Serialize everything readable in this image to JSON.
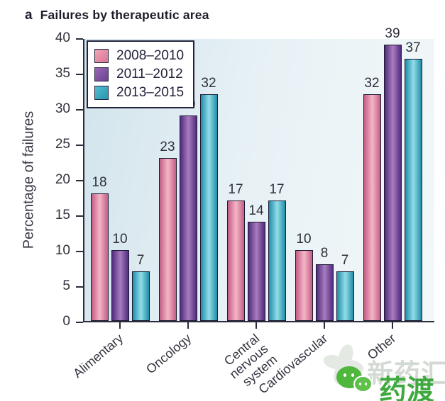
{
  "title": {
    "panel": "a",
    "text": "Failures by therapeutic area"
  },
  "chart_data": {
    "type": "bar",
    "title": "Failures by therapeutic area",
    "xlabel": "",
    "ylabel": "Percentage of failures",
    "ylim": [
      0,
      40
    ],
    "yticks": [
      0,
      5,
      10,
      15,
      20,
      25,
      30,
      35,
      40
    ],
    "grid": false,
    "legend_position": "top-left",
    "categories": [
      "Alimentary",
      "Oncology",
      "Central nervous\nsystem",
      "Cardiovascular",
      "Other"
    ],
    "series": [
      {
        "name": "2008–2010",
        "values": [
          18,
          23,
          17,
          10,
          32
        ],
        "color_mid": "#f5b6c6",
        "color_edge": "#c25d85",
        "swatch_light": "#f0a4b8",
        "swatch_dark": "#d97693"
      },
      {
        "name": "2011–2012",
        "values": [
          10,
          29,
          14,
          8,
          39
        ],
        "color_mid": "#a97cc0",
        "color_edge": "#4f2c7c",
        "swatch_light": "#9a68b4",
        "swatch_dark": "#6b3f92"
      },
      {
        "name": "2013–2015",
        "values": [
          7,
          32,
          17,
          7,
          37
        ],
        "color_mid": "#93dde9",
        "color_edge": "#1e8da8",
        "swatch_light": "#55bccd",
        "swatch_dark": "#2695af"
      }
    ]
  },
  "watermark": {
    "gray_text": "新药汇",
    "green_text": "药渡"
  },
  "colors": {
    "bar_outline": "#1c1b33",
    "axis": "#2b2b3c",
    "plot_bg_left": "#d2e4ec",
    "plot_bg_right": "#f2f8f9",
    "watermark_gray": "#d3dad4",
    "watermark_green": "#3fa83f"
  }
}
